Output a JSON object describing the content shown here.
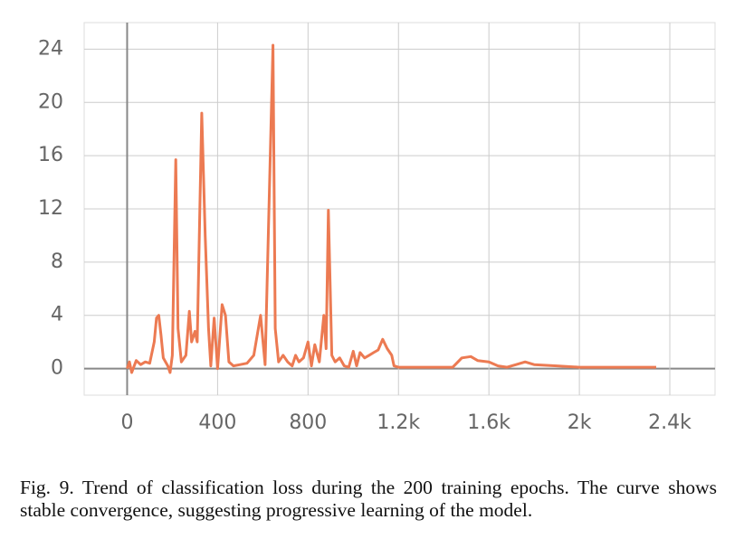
{
  "chart_data": {
    "type": "line",
    "x": [
      0,
      10,
      20,
      40,
      60,
      80,
      100,
      120,
      130,
      140,
      150,
      160,
      170,
      180,
      190,
      200,
      215,
      225,
      240,
      260,
      275,
      285,
      300,
      310,
      330,
      345,
      360,
      370,
      385,
      400,
      420,
      435,
      450,
      470,
      500,
      530,
      560,
      590,
      610,
      645,
      655,
      670,
      690,
      710,
      730,
      745,
      760,
      780,
      800,
      815,
      830,
      850,
      870,
      880,
      890,
      905,
      920,
      940,
      960,
      980,
      1000,
      1015,
      1030,
      1050,
      1070,
      1090,
      1110,
      1130,
      1150,
      1170,
      1180,
      1200,
      1300,
      1400,
      1440,
      1480,
      1520,
      1550,
      1600,
      1640,
      1680,
      1720,
      1760,
      1800,
      1900,
      2000,
      2100,
      2200,
      2340
    ],
    "series": [
      {
        "name": "loss",
        "color": "#ec7a52",
        "values": [
          0,
          0.5,
          -0.3,
          0.6,
          0.3,
          0.5,
          0.4,
          2,
          3.8,
          4,
          2.5,
          0.8,
          0.5,
          0.2,
          -0.3,
          1,
          15.7,
          3,
          0.5,
          1,
          4.3,
          2,
          2.8,
          2,
          19.2,
          10,
          3,
          0.2,
          3.8,
          0,
          4.8,
          4,
          0.5,
          0.2,
          0.3,
          0.4,
          1,
          4,
          0.3,
          24.3,
          3,
          0.5,
          1,
          0.5,
          0.2,
          1,
          0.5,
          0.8,
          2,
          0.2,
          1.8,
          0.5,
          4,
          1.5,
          11.9,
          1,
          0.5,
          0.8,
          0.2,
          0.1,
          1.3,
          0.2,
          1.2,
          0.8,
          1,
          1.2,
          1.4,
          2.2,
          1.5,
          1,
          0.2,
          0.1,
          0.1,
          0.1,
          0.1,
          0.8,
          0.9,
          0.6,
          0.5,
          0.2,
          0.1,
          0.3,
          0.5,
          0.3,
          0.2,
          0.1,
          0.1,
          0.1,
          0.1
        ]
      }
    ],
    "xlim": [
      -190,
      2600
    ],
    "xticks": [
      0,
      400,
      800,
      {
        "value": 1200,
        "label": "1.2k"
      },
      {
        "value": 1600,
        "label": "1.6k"
      },
      {
        "value": 2000,
        "label": "2k"
      },
      {
        "value": 2400,
        "label": "2.4k"
      }
    ],
    "ylim": [
      -2,
      26
    ],
    "yticks": [
      0,
      4,
      8,
      12,
      16,
      20,
      24
    ],
    "grid": true
  },
  "caption": "Fig. 9.  Trend of classification loss during the 200 training epochs. The curve shows stable convergence, suggesting progressive learning of the model."
}
